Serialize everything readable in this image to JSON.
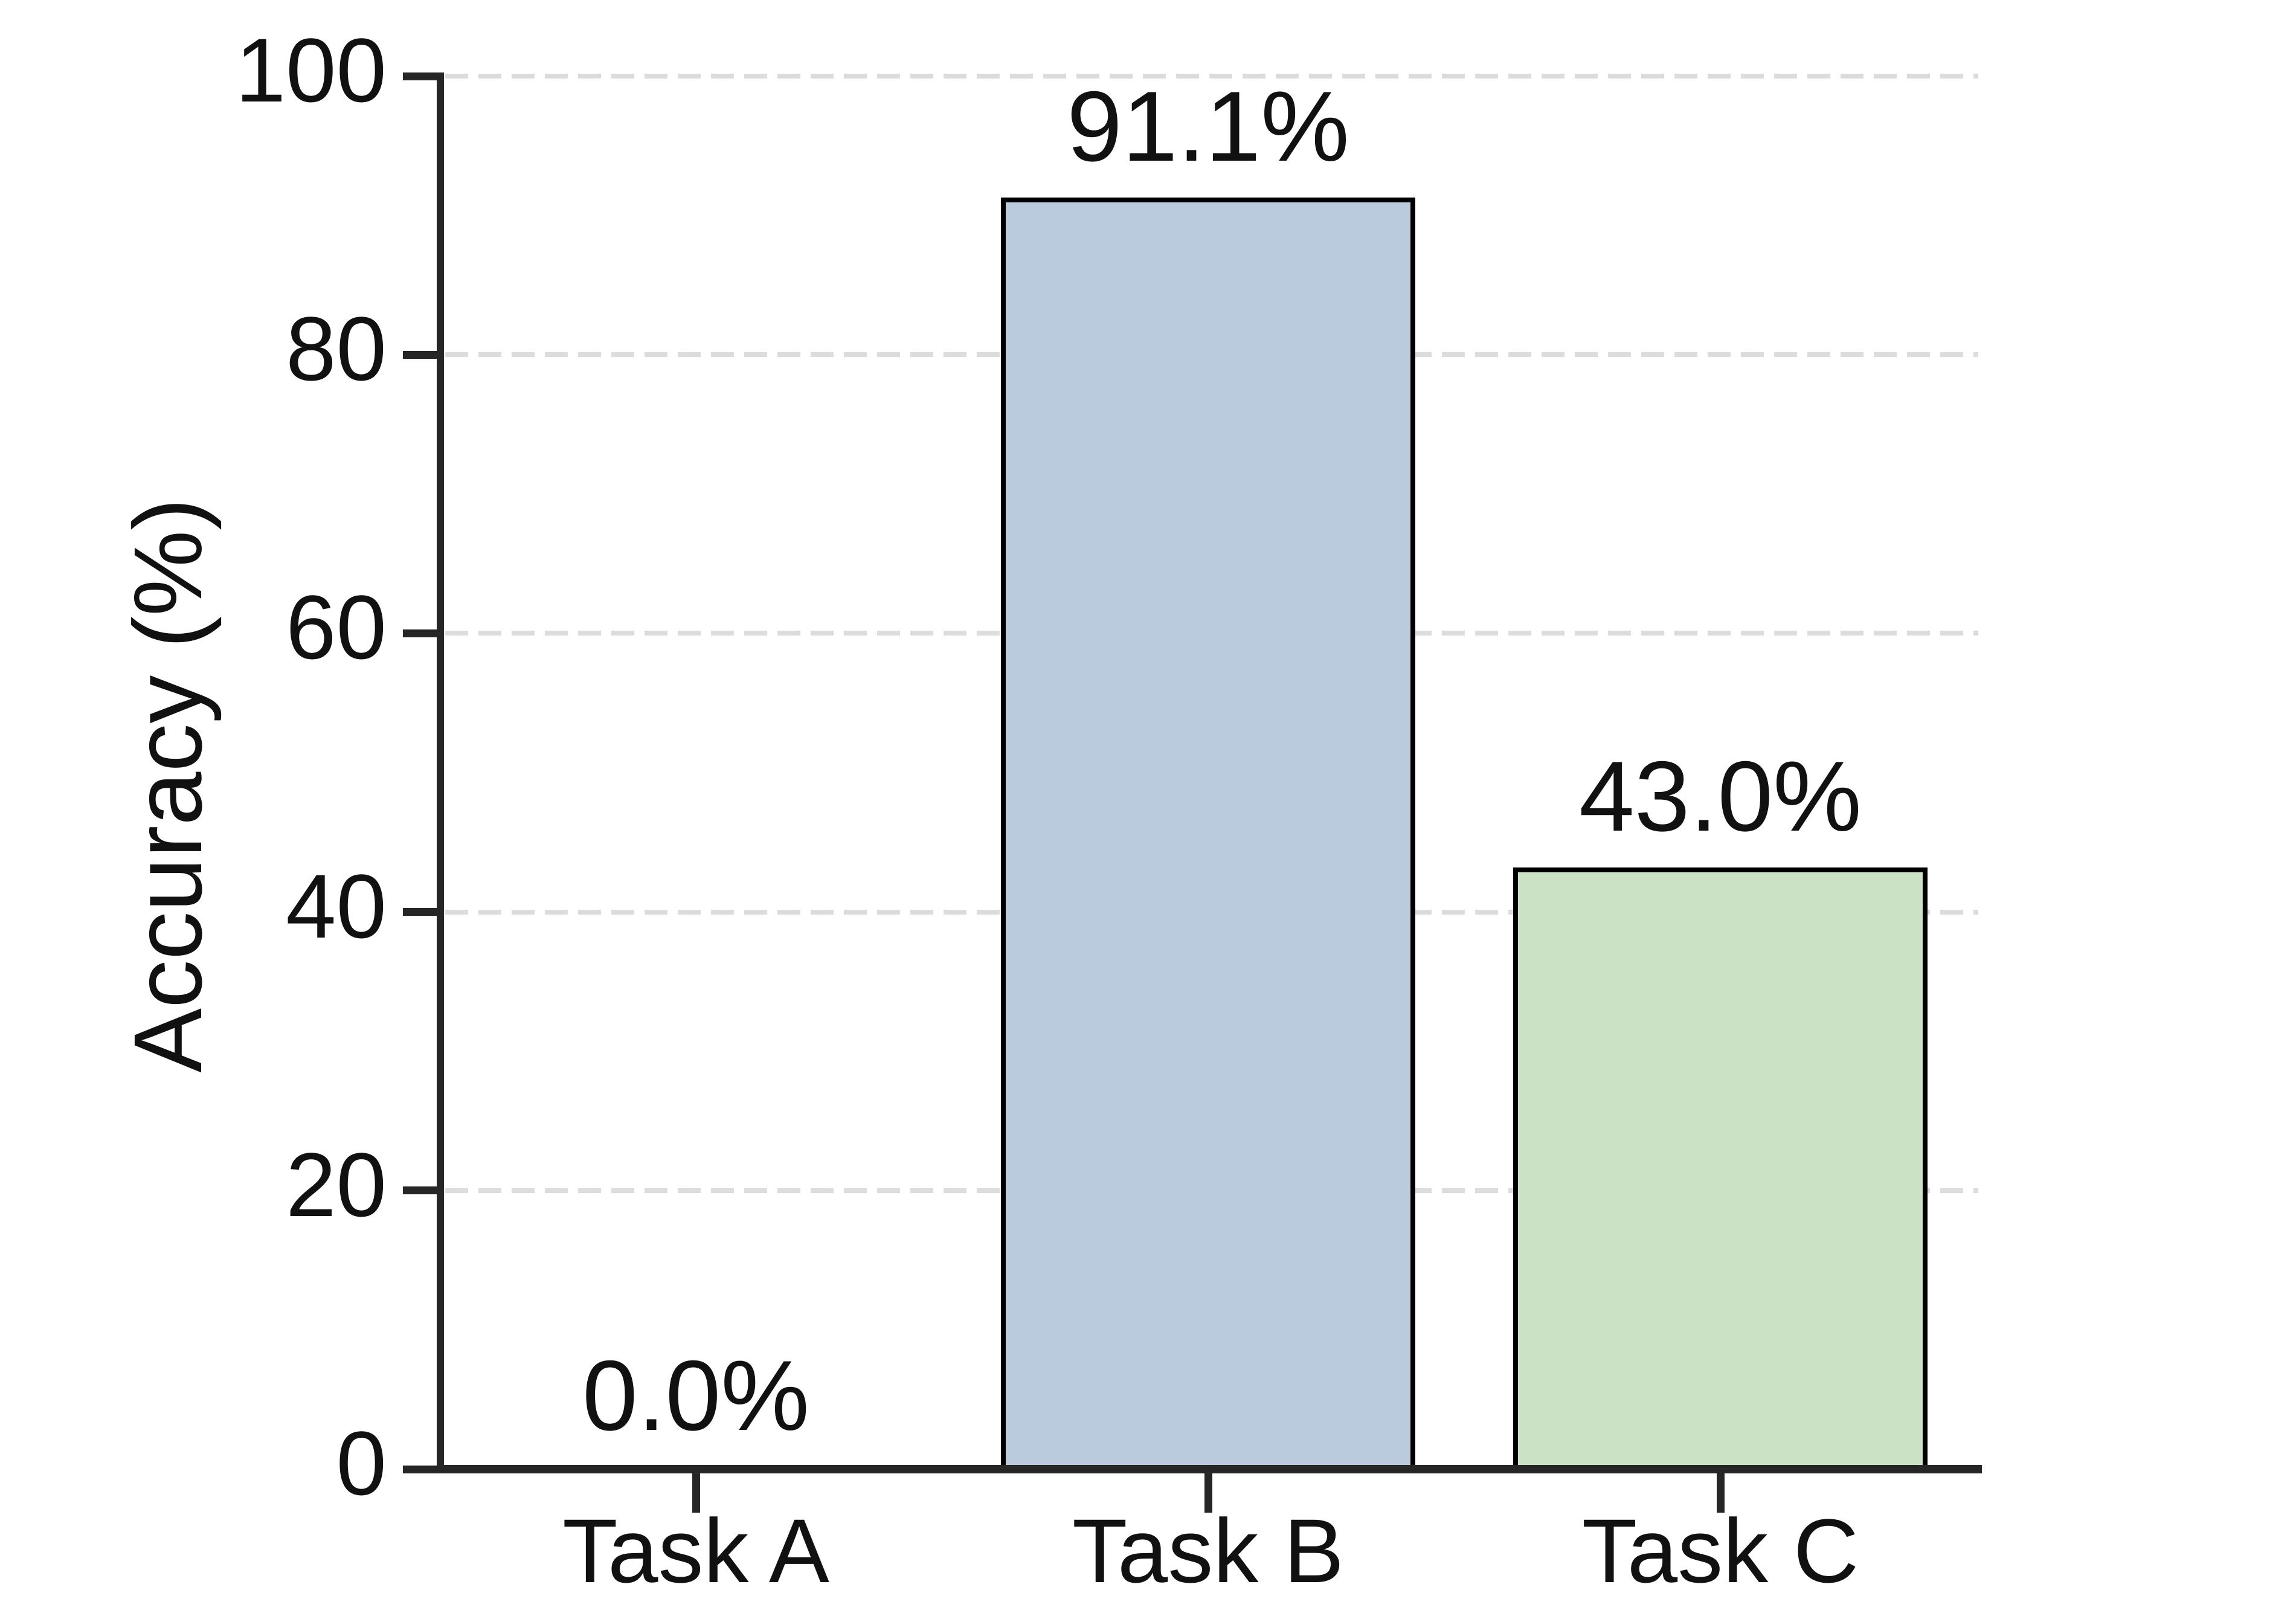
{
  "chart_data": {
    "type": "bar",
    "categories": [
      "Task A",
      "Task B",
      "Task C"
    ],
    "values": [
      0.0,
      91.1,
      43.0
    ],
    "value_labels": [
      "0.0%",
      "91.1%",
      "43.0%"
    ],
    "bar_colors": [
      null,
      "#b9cbdd",
      "#cbe3c4"
    ],
    "bar_edge_color": "#000000",
    "title": "",
    "xlabel": "",
    "ylabel": "Accuracy (%)",
    "ylim": [
      0,
      100
    ],
    "yticks": [
      0,
      20,
      40,
      60,
      80,
      100
    ],
    "ytick_labels": [
      "0",
      "20",
      "40",
      "60",
      "80",
      "100"
    ],
    "grid": "horizontal-dashed",
    "gridline_color": "#dcdcdc",
    "axis_color": "#262626",
    "legend": "none"
  }
}
